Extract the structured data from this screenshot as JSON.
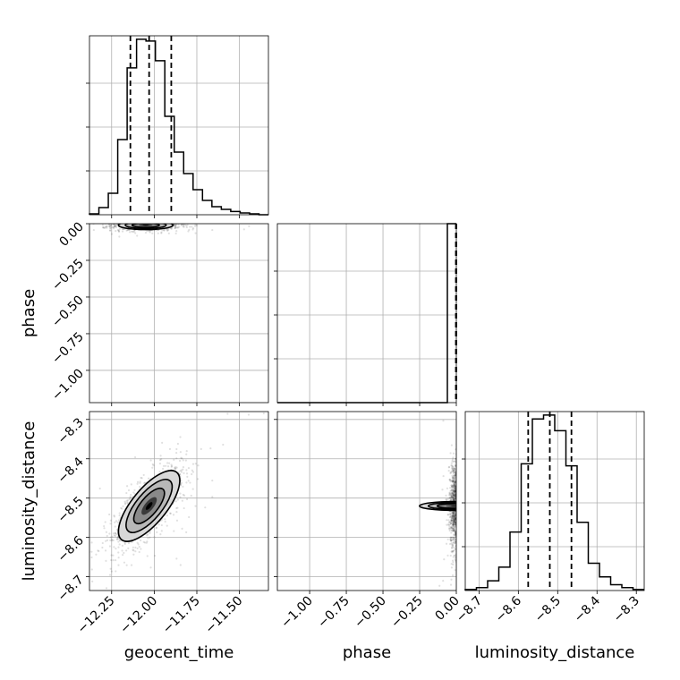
{
  "chart_data": {
    "type": "corner",
    "parameters": [
      {
        "name": "geocent_time",
        "label": "geocent_time",
        "range": [
          -12.38,
          -11.33
        ],
        "ticks": [
          -12.25,
          -12.0,
          -11.75,
          -11.5
        ],
        "tick_labels": [
          "−12.25",
          "−12.00",
          "−11.75",
          "−11.50"
        ],
        "quantiles": [
          -12.14,
          -12.03,
          -11.9
        ],
        "hist_counts": [
          0.5,
          4,
          12,
          42,
          82,
          98,
          97,
          86,
          55,
          35,
          23,
          14,
          8,
          4.5,
          3,
          1.8,
          1,
          0.5,
          0
        ]
      },
      {
        "name": "phase",
        "label": "phase",
        "range": [
          -1.22,
          0.0
        ],
        "ticks": [
          -1.0,
          -0.75,
          -0.5,
          -0.25,
          0.0
        ],
        "tick_labels": [
          "−1.00",
          "−0.75",
          "−0.50",
          "−0.25",
          "0.00"
        ],
        "quantiles": [
          -0.003,
          -0.001,
          0.0
        ],
        "hist_counts": [
          0,
          0,
          0,
          0,
          0,
          0,
          0,
          0,
          0,
          0,
          0,
          0,
          0,
          0,
          0,
          0,
          0,
          0,
          0,
          100
        ],
        "hist_max": 100
      },
      {
        "name": "luminosity_distance",
        "label": "luminosity_distance",
        "range": [
          -8.735,
          -8.28
        ],
        "ticks": [
          -8.7,
          -8.6,
          -8.5,
          -8.4,
          -8.3
        ],
        "tick_labels": [
          "−8.7",
          "−8.6",
          "−8.5",
          "−8.4",
          "−8.3"
        ],
        "quantiles": [
          -8.575,
          -8.52,
          -8.465
        ],
        "hist_counts": [
          0.5,
          1.5,
          5,
          12,
          30,
          65,
          88,
          90,
          82,
          64,
          35,
          14,
          7,
          3,
          1.5,
          0.5
        ]
      }
    ],
    "pairs": [
      {
        "x": "geocent_time",
        "y": "phase",
        "center": [
          -12.05,
          -0.01
        ],
        "spread": [
          0.08,
          0.015
        ],
        "correlation": 0.0
      },
      {
        "x": "geocent_time",
        "y": "luminosity_distance",
        "center": [
          -12.03,
          -8.52
        ],
        "spread": [
          0.09,
          0.045
        ],
        "correlation": 0.72
      },
      {
        "x": "phase",
        "y": "luminosity_distance",
        "center": [
          -0.01,
          -8.52
        ],
        "spread": [
          0.015,
          0.045
        ],
        "correlation": 0.0
      }
    ],
    "grid": true,
    "quantile_line_style": "dashed"
  }
}
